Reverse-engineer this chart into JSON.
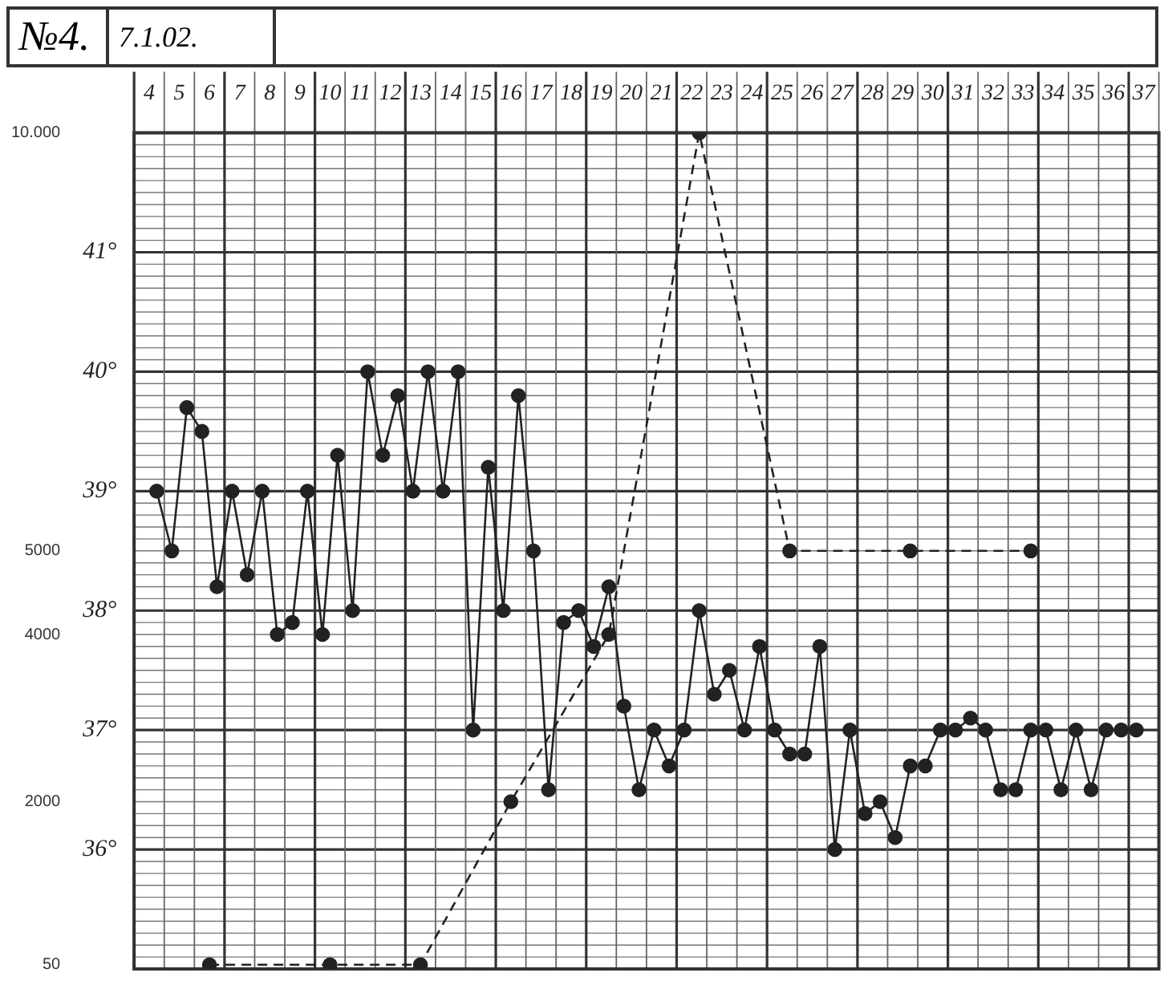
{
  "chart_data": {
    "type": "line",
    "title": "№4.",
    "subtitle": "7.1.02.",
    "xlim": [
      4,
      38
    ],
    "xticks": [
      {
        "value": 4.5,
        "label": "4"
      },
      {
        "value": 5.5,
        "label": "5"
      },
      {
        "value": 6.5,
        "label": "6"
      },
      {
        "value": 7.5,
        "label": "7"
      },
      {
        "value": 8.5,
        "label": "8"
      },
      {
        "value": 9.5,
        "label": "9"
      },
      {
        "value": 10.5,
        "label": "10"
      },
      {
        "value": 11.5,
        "label": "11"
      },
      {
        "value": 12.5,
        "label": "12"
      },
      {
        "value": 13.5,
        "label": "13"
      },
      {
        "value": 14.5,
        "label": "14"
      },
      {
        "value": 15.5,
        "label": "15"
      },
      {
        "value": 16.5,
        "label": "16"
      },
      {
        "value": 17.5,
        "label": "17"
      },
      {
        "value": 18.5,
        "label": "18"
      },
      {
        "value": 19.5,
        "label": "19"
      },
      {
        "value": 20.5,
        "label": "20"
      },
      {
        "value": 21.5,
        "label": "21"
      },
      {
        "value": 22.5,
        "label": "22"
      },
      {
        "value": 23.5,
        "label": "23"
      },
      {
        "value": 24.5,
        "label": "24"
      },
      {
        "value": 25.5,
        "label": "25"
      },
      {
        "value": 26.5,
        "label": "26"
      },
      {
        "value": 27.5,
        "label": "27"
      },
      {
        "value": 28.5,
        "label": "28"
      },
      {
        "value": 29.5,
        "label": "29"
      },
      {
        "value": 30.5,
        "label": "30"
      },
      {
        "value": 31.5,
        "label": "31"
      },
      {
        "value": 32.5,
        "label": "32"
      },
      {
        "value": 33.5,
        "label": "33"
      },
      {
        "value": 34.5,
        "label": "34"
      },
      {
        "value": 35.5,
        "label": "35"
      },
      {
        "value": 36.5,
        "label": "36"
      },
      {
        "value": 37.5,
        "label": "37"
      }
    ],
    "ylim": [
      35,
      42
    ],
    "yticks": [
      {
        "value": 36,
        "label": "36°"
      },
      {
        "value": 37,
        "label": "37°"
      },
      {
        "value": 38,
        "label": "38°"
      },
      {
        "value": 39,
        "label": "39°"
      },
      {
        "value": 40,
        "label": "40°"
      },
      {
        "value": 41,
        "label": "41°"
      }
    ],
    "y2lim": [
      0,
      10000
    ],
    "y2ticks": [
      50,
      2000,
      4000,
      5000,
      {
        "value": 10000,
        "label": "10.000"
      }
    ],
    "grid": true,
    "series": [
      {
        "color": "#222222",
        "marker": "circle",
        "line_style": "solid",
        "x": [
          4.75,
          5.25,
          5.75,
          6.25,
          6.75,
          7.25,
          7.75,
          8.25,
          8.75,
          9.25,
          9.75,
          10.25,
          10.75,
          11.25,
          11.75,
          12.25,
          12.75,
          13.25,
          13.75,
          14.25,
          14.75,
          15.25,
          15.75,
          16.25,
          16.75,
          17.25,
          17.75,
          18.25,
          18.75,
          19.25,
          19.75,
          20.25,
          20.75,
          21.25,
          21.75,
          22.25,
          22.75,
          23.25,
          23.75,
          24.25,
          24.75,
          25.25,
          25.75,
          26.25,
          26.75,
          27.25,
          27.75,
          28.25,
          28.75,
          29.25,
          29.75,
          30.25,
          30.75,
          31.25,
          31.75,
          32.25,
          32.75,
          33.25,
          33.75,
          34.25,
          34.75,
          35.25,
          35.75,
          36.25,
          36.75,
          37.25
        ],
        "values": [
          39.0,
          38.5,
          39.7,
          39.5,
          38.2,
          39.0,
          38.3,
          39.0,
          37.8,
          37.9,
          39.0,
          37.8,
          39.3,
          38.0,
          40.0,
          39.3,
          39.8,
          39.0,
          40.0,
          39.0,
          40.0,
          37.0,
          39.2,
          38.0,
          39.8,
          38.5,
          36.5,
          37.9,
          38.0,
          37.7,
          38.2,
          37.2,
          36.5,
          37.0,
          36.7,
          37.0,
          38.0,
          37.3,
          37.5,
          37.0,
          37.7,
          37.0,
          36.8,
          36.8,
          37.7,
          36.0,
          37.0,
          36.3,
          36.4,
          36.1,
          36.7,
          36.7,
          37.0,
          37.0,
          37.1,
          37.0,
          36.5,
          36.5,
          37.0,
          37.0,
          36.5,
          37.0,
          36.5,
          37.0,
          37.0,
          37.0
        ]
      },
      {
        "color": "#222222",
        "axis": "y2",
        "marker": "circle",
        "line_style": "dashed",
        "x": [
          6.5,
          10.5,
          13.5,
          16.5,
          19.75,
          22.75,
          25.75,
          29.75,
          33.75
        ],
        "values": [
          50,
          50,
          50,
          2000,
          4000,
          10000,
          5000,
          5000,
          5000
        ]
      }
    ]
  }
}
